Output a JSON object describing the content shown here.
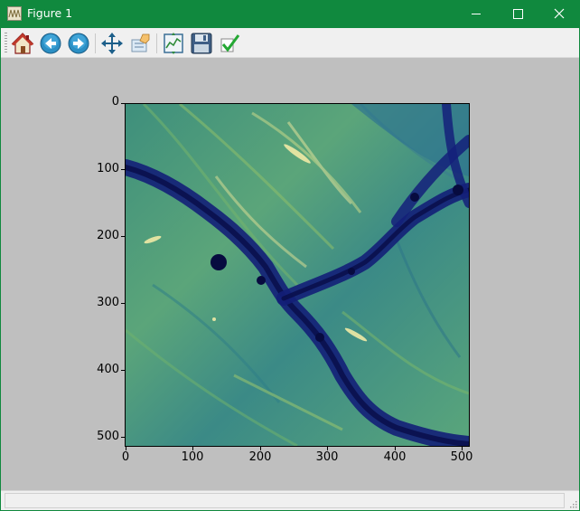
{
  "window": {
    "title": "Figure 1"
  },
  "toolbar": {
    "buttons": [
      {
        "name": "home-button",
        "icon": "home-icon"
      },
      {
        "name": "back-button",
        "icon": "back-arrow-icon"
      },
      {
        "name": "forward-button",
        "icon": "forward-arrow-icon"
      },
      {
        "name": "pan-button",
        "icon": "move-arrows-icon"
      },
      {
        "name": "zoom-button",
        "icon": "zoom-rect-icon"
      },
      {
        "name": "subplots-button",
        "icon": "subplots-icon"
      },
      {
        "name": "save-button",
        "icon": "floppy-disk-icon"
      },
      {
        "name": "edit-button",
        "icon": "checkmark-icon"
      }
    ]
  },
  "plot": {
    "y_ticks": [
      "0",
      "100",
      "200",
      "300",
      "400",
      "500"
    ],
    "x_ticks": [
      "0",
      "100",
      "200",
      "300",
      "400",
      "500"
    ]
  },
  "chart_data": {
    "type": "heatmap",
    "colormap": "gist_earth-like (navy → teal → green → pale yellow)",
    "x_range": [
      0,
      512
    ],
    "y_range": [
      512,
      0
    ],
    "x_ticks": [
      0,
      100,
      200,
      300,
      400,
      500
    ],
    "y_ticks": [
      0,
      100,
      200,
      300,
      400,
      500
    ],
    "colors": {
      "low": "#0a1a6b",
      "mid": "#2f7f86",
      "high": "#e8e69a"
    }
  },
  "statusbar": {
    "text": ""
  }
}
